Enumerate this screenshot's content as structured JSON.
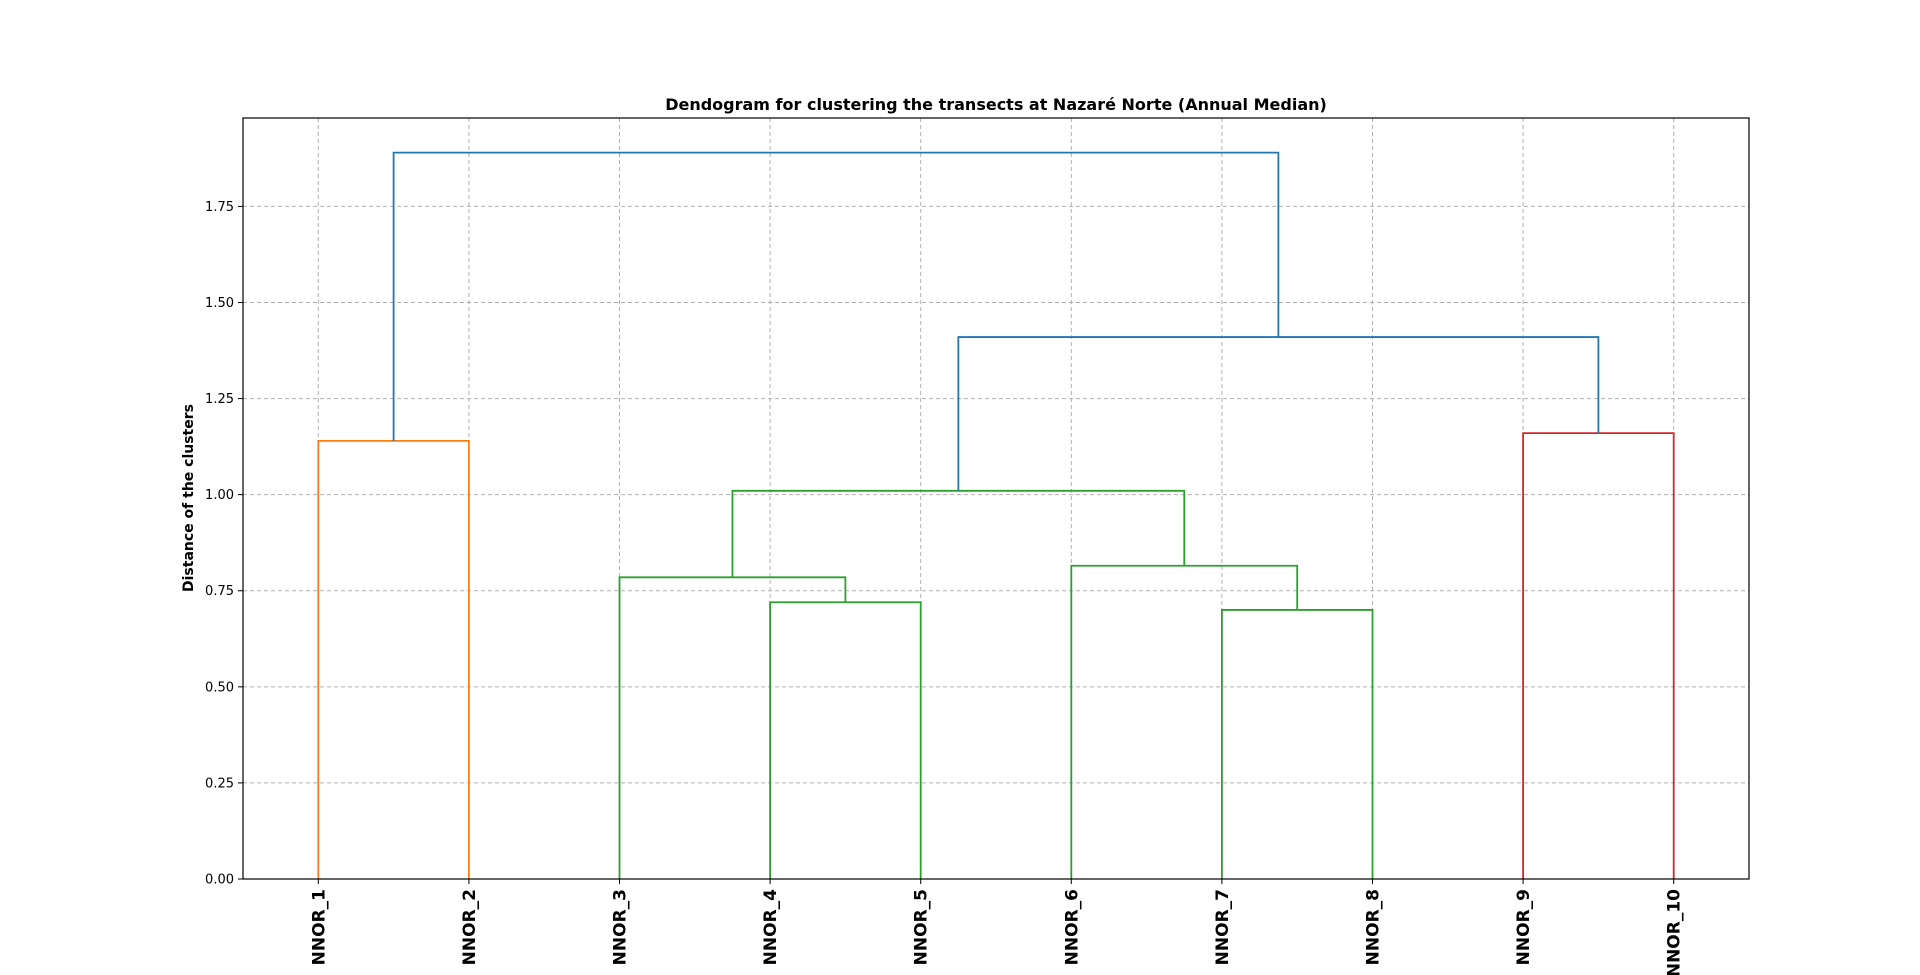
{
  "chart_data": {
    "type": "dendrogram",
    "title": "Dendogram for clustering the transects at Nazaré Norte (Annual Median)",
    "xlabel": "",
    "ylabel": "Distance of the clusters",
    "ylim": [
      0,
      1.98
    ],
    "y_ticks": [
      "0.00",
      "0.25",
      "0.50",
      "0.75",
      "1.00",
      "1.25",
      "1.50",
      "1.75"
    ],
    "y_tick_values": [
      0,
      0.25,
      0.5,
      0.75,
      1.0,
      1.25,
      1.5,
      1.75
    ],
    "grid": true,
    "leaves": [
      "NNOR_1",
      "NNOR_2",
      "NNOR_3",
      "NNOR_4",
      "NNOR_5",
      "NNOR_6",
      "NNOR_7",
      "NNOR_8",
      "NNOR_9",
      "NNOR_10"
    ],
    "colors": {
      "orange": "#ff7f0e",
      "green": "#2ca02c",
      "red": "#d62728",
      "blue": "#1f77b4"
    },
    "links": [
      {
        "left": "NNOR_1",
        "right": "NNOR_2",
        "height": 1.14,
        "color": "orange"
      },
      {
        "left": "NNOR_4",
        "right": "NNOR_5",
        "height": 0.72,
        "color": "green"
      },
      {
        "left": "NNOR_3",
        "right": "(NNOR_4, NNOR_5)",
        "height": 0.785,
        "color": "green"
      },
      {
        "left": "NNOR_7",
        "right": "NNOR_8",
        "height": 0.7,
        "color": "green"
      },
      {
        "left": "NNOR_6",
        "right": "(NNOR_7, NNOR_8)",
        "height": 0.815,
        "color": "green"
      },
      {
        "left": "(NNOR_3 .. NNOR_5)",
        "right": "(NNOR_6 .. NNOR_8)",
        "height": 1.01,
        "color": "green"
      },
      {
        "left": "NNOR_9",
        "right": "NNOR_10",
        "height": 1.16,
        "color": "red"
      },
      {
        "left": "(NNOR_3 .. NNOR_8)",
        "right": "(NNOR_9, NNOR_10)",
        "height": 1.41,
        "color": "blue"
      },
      {
        "left": "(NNOR_1, NNOR_2)",
        "right": "(NNOR_3 .. NNOR_10)",
        "height": 1.89,
        "color": "blue"
      }
    ]
  }
}
